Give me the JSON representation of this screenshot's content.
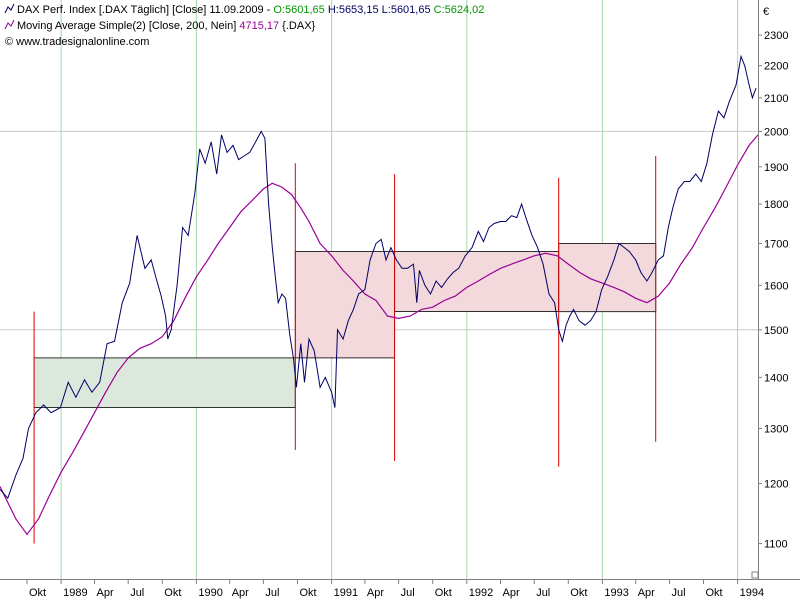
{
  "legend": {
    "line1_prefix": "DAX Perf. Index [.DAX  Täglich] [Close] 11.09.2009 - ",
    "line1_open": "O:5601,65",
    "line1_high": " H:5653,15",
    "line1_low": " L:5601,65",
    "line1_close": " C:5624,02",
    "line2_prefix": "Moving Average Simple(2) [Close, 200, Nein] ",
    "line2_value": "4715,17",
    "line2_suffix": " {.DAX}",
    "line3": "© www.tradesignalonline.com"
  },
  "colors": {
    "price": "#000066",
    "ma": "#990099",
    "open": "#009900",
    "ohl": "#000066",
    "grid_v": "#a8d8a8",
    "grid_h": "#c8c8c8",
    "signal": "#dd0000",
    "box_green": "#dde8dd",
    "box_pink": "#f3d8dc"
  },
  "chart_data": {
    "type": "line",
    "currency_label": "€",
    "y_ticks": [
      1100,
      1200,
      1300,
      1400,
      1500,
      1600,
      1700,
      1800,
      1900,
      2000,
      2100,
      2200,
      2300
    ],
    "ylim": [
      1045,
      2420
    ],
    "y_scale": "log",
    "x_ticks": [
      {
        "label": "Okt",
        "date": "1988-10"
      },
      {
        "label": "1989",
        "date": "1989-01"
      },
      {
        "label": "Apr",
        "date": "1989-04"
      },
      {
        "label": "Jul",
        "date": "1989-07"
      },
      {
        "label": "Okt",
        "date": "1989-10"
      },
      {
        "label": "1990",
        "date": "1990-01"
      },
      {
        "label": "Apr",
        "date": "1990-04"
      },
      {
        "label": "Jul",
        "date": "1990-07"
      },
      {
        "label": "Okt",
        "date": "1990-10"
      },
      {
        "label": "1991",
        "date": "1991-01"
      },
      {
        "label": "Apr",
        "date": "1991-04"
      },
      {
        "label": "Jul",
        "date": "1991-07"
      },
      {
        "label": "Okt",
        "date": "1991-10"
      },
      {
        "label": "1992",
        "date": "1992-01"
      },
      {
        "label": "Apr",
        "date": "1992-04"
      },
      {
        "label": "Jul",
        "date": "1992-07"
      },
      {
        "label": "Okt",
        "date": "1992-10"
      },
      {
        "label": "1993",
        "date": "1993-01"
      },
      {
        "label": "Apr",
        "date": "1993-04"
      },
      {
        "label": "Jul",
        "date": "1993-07"
      },
      {
        "label": "Okt",
        "date": "1993-10"
      },
      {
        "label": "1994",
        "date": "1994-01"
      }
    ],
    "xlim": [
      "1988-07-20",
      "1994-02-25"
    ],
    "series": [
      {
        "key": "price",
        "dates": [
          "1988-07-20",
          "1988-08-10",
          "1988-09-01",
          "1988-09-20",
          "1988-10-05",
          "1988-10-25",
          "1988-11-15",
          "1988-12-05",
          "1988-12-30",
          "1989-01-20",
          "1989-02-10",
          "1989-03-05",
          "1989-03-25",
          "1989-04-15",
          "1989-05-05",
          "1989-05-25",
          "1989-06-15",
          "1989-07-05",
          "1989-07-25",
          "1989-08-15",
          "1989-09-01",
          "1989-09-15",
          "1989-09-28",
          "1989-10-10",
          "1989-10-16",
          "1989-10-25",
          "1989-11-10",
          "1989-11-25",
          "1989-12-10",
          "1989-12-28",
          "1990-01-10",
          "1990-01-25",
          "1990-02-10",
          "1990-02-25",
          "1990-03-10",
          "1990-03-25",
          "1990-04-10",
          "1990-04-25",
          "1990-05-10",
          "1990-05-25",
          "1990-06-10",
          "1990-06-25",
          "1990-07-05",
          "1990-07-15",
          "1990-07-25",
          "1990-08-02",
          "1990-08-10",
          "1990-08-20",
          "1990-08-30",
          "1990-09-10",
          "1990-09-20",
          "1990-09-28",
          "1990-10-10",
          "1990-10-20",
          "1990-11-01",
          "1990-11-15",
          "1990-12-01",
          "1990-12-15",
          "1991-01-01",
          "1991-01-10",
          "1991-01-17",
          "1991-02-01",
          "1991-02-15",
          "1991-03-01",
          "1991-03-15",
          "1991-04-01",
          "1991-04-15",
          "1991-05-01",
          "1991-05-15",
          "1991-05-28",
          "1991-06-10",
          "1991-06-25",
          "1991-07-10",
          "1991-07-25",
          "1991-08-10",
          "1991-08-19",
          "1991-08-26",
          "1991-09-10",
          "1991-09-25",
          "1991-10-10",
          "1991-10-25",
          "1991-11-10",
          "1991-11-25",
          "1991-12-10",
          "1991-12-28",
          "1992-01-15",
          "1992-02-01",
          "1992-02-15",
          "1992-03-01",
          "1992-03-15",
          "1992-04-01",
          "1992-04-15",
          "1992-05-01",
          "1992-05-15",
          "1992-05-28",
          "1992-06-10",
          "1992-06-25",
          "1992-07-10",
          "1992-07-25",
          "1992-08-10",
          "1992-08-25",
          "1992-09-05",
          "1992-09-15",
          "1992-09-25",
          "1992-10-05",
          "1992-10-15",
          "1992-10-30",
          "1992-11-15",
          "1992-11-30",
          "1992-12-15",
          "1992-12-30",
          "1993-01-15",
          "1993-02-01",
          "1993-02-15",
          "1993-03-01",
          "1993-03-15",
          "1993-04-01",
          "1993-04-15",
          "1993-05-01",
          "1993-05-15",
          "1993-06-01",
          "1993-06-15",
          "1993-06-28",
          "1993-07-10",
          "1993-07-25",
          "1993-08-10",
          "1993-08-25",
          "1993-09-10",
          "1993-09-25",
          "1993-10-10",
          "1993-10-25",
          "1993-11-10",
          "1993-11-25",
          "1993-12-10",
          "1993-12-28",
          "1994-01-10",
          "1994-01-20",
          "1994-02-01",
          "1994-02-10",
          "1994-02-20"
        ],
        "values": [
          1190,
          1175,
          1215,
          1245,
          1300,
          1330,
          1345,
          1330,
          1340,
          1390,
          1360,
          1395,
          1370,
          1390,
          1470,
          1475,
          1560,
          1605,
          1720,
          1640,
          1660,
          1615,
          1575,
          1530,
          1480,
          1500,
          1600,
          1740,
          1720,
          1830,
          1950,
          1910,
          1970,
          1880,
          1990,
          1940,
          1960,
          1920,
          1930,
          1940,
          1970,
          2000,
          1980,
          1800,
          1690,
          1620,
          1560,
          1580,
          1570,
          1490,
          1440,
          1380,
          1470,
          1390,
          1480,
          1455,
          1380,
          1400,
          1370,
          1340,
          1500,
          1480,
          1520,
          1545,
          1580,
          1590,
          1660,
          1700,
          1710,
          1660,
          1690,
          1660,
          1640,
          1640,
          1650,
          1560,
          1635,
          1600,
          1580,
          1610,
          1595,
          1615,
          1630,
          1640,
          1670,
          1690,
          1730,
          1705,
          1740,
          1750,
          1755,
          1755,
          1770,
          1765,
          1800,
          1760,
          1720,
          1690,
          1650,
          1580,
          1560,
          1500,
          1475,
          1510,
          1530,
          1545,
          1520,
          1510,
          1520,
          1540,
          1590,
          1620,
          1660,
          1700,
          1690,
          1680,
          1660,
          1630,
          1610,
          1630,
          1660,
          1670,
          1740,
          1790,
          1840,
          1860,
          1860,
          1880,
          1860,
          1910,
          1990,
          2060,
          2040,
          2090,
          2140,
          2230,
          2200,
          2140,
          2100,
          2130
        ]
      },
      {
        "key": "ma",
        "dates": [
          "1988-07-20",
          "1988-09-01",
          "1988-10-01",
          "1988-11-01",
          "1988-12-01",
          "1989-01-01",
          "1989-02-01",
          "1989-03-01",
          "1989-04-01",
          "1989-05-01",
          "1989-06-01",
          "1989-07-01",
          "1989-08-01",
          "1989-09-01",
          "1989-10-01",
          "1989-11-01",
          "1989-12-01",
          "1990-01-01",
          "1990-02-01",
          "1990-03-01",
          "1990-04-01",
          "1990-05-01",
          "1990-06-01",
          "1990-07-01",
          "1990-07-25",
          "1990-08-20",
          "1990-09-15",
          "1990-10-10",
          "1990-11-01",
          "1990-12-01",
          "1991-01-01",
          "1991-02-01",
          "1991-03-01",
          "1991-04-01",
          "1991-05-01",
          "1991-06-01",
          "1991-07-01",
          "1991-08-01",
          "1991-09-01",
          "1991-10-01",
          "1991-11-01",
          "1991-12-01",
          "1992-01-01",
          "1992-02-01",
          "1992-03-01",
          "1992-04-01",
          "1992-05-01",
          "1992-06-01",
          "1992-07-01",
          "1992-08-01",
          "1992-09-01",
          "1992-10-01",
          "1992-11-01",
          "1992-12-01",
          "1993-01-01",
          "1993-02-01",
          "1993-03-01",
          "1993-04-01",
          "1993-05-01",
          "1993-06-01",
          "1993-07-01",
          "1993-08-01",
          "1993-09-01",
          "1993-10-01",
          "1993-11-01",
          "1993-12-01",
          "1994-01-01",
          "1994-02-01",
          "1994-02-25"
        ],
        "values": [
          1195,
          1140,
          1115,
          1140,
          1180,
          1220,
          1255,
          1290,
          1330,
          1370,
          1410,
          1440,
          1460,
          1470,
          1485,
          1520,
          1570,
          1620,
          1660,
          1700,
          1740,
          1780,
          1810,
          1840,
          1855,
          1845,
          1825,
          1790,
          1755,
          1700,
          1670,
          1635,
          1610,
          1580,
          1565,
          1530,
          1525,
          1530,
          1545,
          1550,
          1565,
          1575,
          1595,
          1610,
          1625,
          1640,
          1650,
          1660,
          1670,
          1676,
          1670,
          1650,
          1630,
          1615,
          1605,
          1595,
          1585,
          1570,
          1560,
          1575,
          1605,
          1650,
          1690,
          1740,
          1790,
          1845,
          1905,
          1960,
          1990
        ]
      }
    ],
    "boxes": [
      {
        "kind": "green",
        "start": "1988-10-20",
        "end": "1990-09-25",
        "low": 1340,
        "high": 1440
      },
      {
        "kind": "pink",
        "start": "1990-09-25",
        "end": "1991-06-20",
        "low": 1440,
        "high": 1680
      },
      {
        "kind": "pink",
        "start": "1991-06-20",
        "end": "1992-09-05",
        "low": 1540,
        "high": 1680
      },
      {
        "kind": "pink",
        "start": "1992-09-05",
        "end": "1993-05-25",
        "low": 1540,
        "high": 1700
      }
    ],
    "signal_lines": [
      {
        "date": "1988-10-20",
        "low": 1100,
        "high": 1540
      },
      {
        "date": "1990-09-25",
        "low": 1260,
        "high": 1910
      },
      {
        "date": "1991-06-20",
        "low": 1240,
        "high": 1880
      },
      {
        "date": "1992-09-05",
        "low": 1230,
        "high": 1870
      },
      {
        "date": "1993-05-25",
        "low": 1275,
        "high": 1930
      }
    ]
  }
}
